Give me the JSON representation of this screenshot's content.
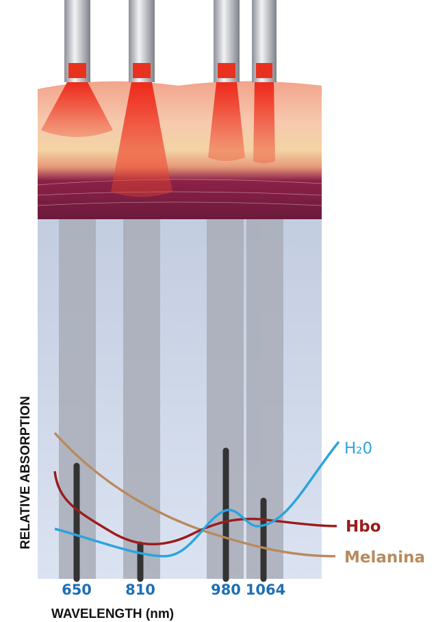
{
  "axis_labels": {
    "y": "RELATIVE ABSORPTION",
    "x": "WAVELENGTH (nm)"
  },
  "wavelengths": [
    "650",
    "810",
    "980",
    "1064"
  ],
  "curves": [
    {
      "label": "H₂0"
    },
    {
      "label": "Hbo"
    },
    {
      "label": "Melanina"
    }
  ]
}
